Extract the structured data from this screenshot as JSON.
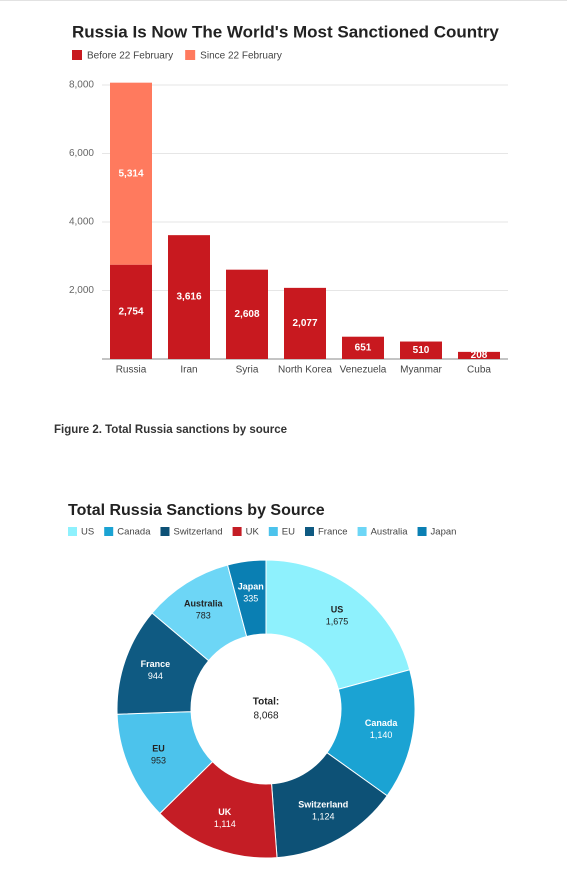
{
  "chart_data": [
    {
      "type": "bar",
      "stacked": true,
      "title": "Russia Is Now The World's Most Sanctioned Country",
      "categories": [
        "Russia",
        "Iran",
        "Syria",
        "North Korea",
        "Venezuela",
        "Myanmar",
        "Cuba"
      ],
      "series": [
        {
          "name": "Before 22 February",
          "color": "#c8191f",
          "values": [
            2754,
            3616,
            2608,
            2077,
            651,
            510,
            208
          ],
          "value_labels": [
            "2,754",
            "3,616",
            "2,608",
            "2,077",
            "651",
            "510",
            "208"
          ]
        },
        {
          "name": "Since 22 February",
          "color": "#ff7a5e",
          "values": [
            5314,
            null,
            null,
            null,
            null,
            null,
            null
          ],
          "value_labels": [
            "5,314",
            null,
            null,
            null,
            null,
            null,
            null
          ]
        }
      ],
      "ylim": [
        0,
        8000
      ],
      "yticks": [
        {
          "value": 2000,
          "label": "2,000"
        },
        {
          "value": 4000,
          "label": "4,000"
        },
        {
          "value": 6000,
          "label": "6,000"
        },
        {
          "value": 8000,
          "label": "8,000"
        }
      ],
      "grid": true,
      "legend": "top-left"
    },
    {
      "type": "donut",
      "title": "Total Russia Sanctions by Source",
      "categories": [
        "US",
        "Canada",
        "Switzerland",
        "UK",
        "EU",
        "France",
        "Australia",
        "Japan"
      ],
      "values": [
        1675,
        1140,
        1124,
        1114,
        953,
        944,
        783,
        335
      ],
      "value_labels": [
        "1,675",
        "1,140",
        "1,124",
        "1,114",
        "953",
        "944",
        "783",
        "335"
      ],
      "colors": [
        "#8ef1fd",
        "#1ba3d3",
        "#0d5176",
        "#c41d25",
        "#4cc3ec",
        "#0f5a82",
        "#6dd6f6",
        "#0a7fb3"
      ],
      "center_label": "Total:",
      "total": 8068,
      "total_label": "8,068",
      "legend": "top-left"
    }
  ],
  "caption": "Figure 2. Total Russia sanctions by source"
}
